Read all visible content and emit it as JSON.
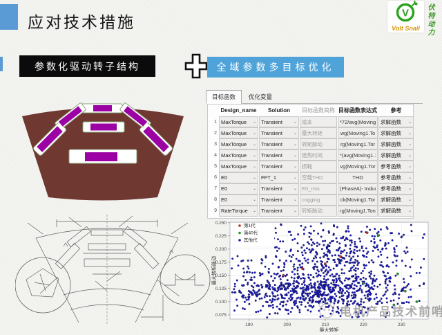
{
  "slide": {
    "title": "应对技术措施",
    "logo": {
      "brand": "Volt Snail",
      "vertical_text": "伏特动力",
      "monogram": "V"
    },
    "banners": {
      "left": "参数化驱动转子结构",
      "right": "全域参数多目标优化"
    }
  },
  "colors": {
    "accent_blue": "#5b9bd5",
    "banner_blue": "#4fa3d9",
    "banner_black": "#0b0b0b",
    "rotor_body": "#6f3830",
    "magnet": "#9b01a3",
    "slot_outline": "#8ba37d",
    "logo_green": "#2aa31c",
    "logo_gold": "#d7960c",
    "gen1_red": "#c62b1d",
    "gen40_green": "#1f9e1f",
    "other_blue": "#2020bb"
  },
  "table_panel": {
    "tabs": [
      {
        "label": "目标函数",
        "active": true
      },
      {
        "label": "优化变量",
        "active": false
      }
    ],
    "columns": [
      "",
      "Design_name",
      "Solution",
      "目标函数简称",
      "目标函数表达式",
      "参考"
    ],
    "rows": [
      {
        "n": "1",
        "design": "MaxTorque",
        "solution": "Transient",
        "abbr": "成本",
        "expr": "*72/avg(Moving",
        "ref": "求解函数"
      },
      {
        "n": "2",
        "design": "MaxTorque",
        "solution": "Transient",
        "abbr": "最大转矩",
        "expr": "wg(Moving1.To",
        "ref": "求解函数"
      },
      {
        "n": "3",
        "design": "MaxTorque",
        "solution": "Transient",
        "abbr": "转矩脉动",
        "expr": "rg(Moving1.Tor",
        "ref": "求解函数"
      },
      {
        "n": "4",
        "design": "MaxTorque",
        "solution": "Transient",
        "abbr": "绝热时间",
        "expr": "*(avg(Moving1.1",
        "ref": "求解函数"
      },
      {
        "n": "5",
        "design": "MaxTorque",
        "solution": "Transient",
        "abbr": "损耗",
        "expr": "vg(Moving1.Tor",
        "ref": "参考函数"
      },
      {
        "n": "6",
        "design": "E0",
        "solution": "FFT_1",
        "abbr": "空载THD",
        "expr": "THD",
        "ref": "参考函数"
      },
      {
        "n": "7",
        "design": "E0",
        "solution": "Transient",
        "abbr": "E0_rms",
        "expr": "(PhaseA)- Induc",
        "ref": "参考函数"
      },
      {
        "n": "8",
        "design": "E0",
        "solution": "Transient",
        "abbr": "cogging",
        "expr": "ck(Moving1.Tor",
        "ref": "求解函数"
      },
      {
        "n": "9",
        "design": "RateTorque",
        "solution": "Transient",
        "abbr": "转矩脉动",
        "expr": "rg(Moving1.Ton",
        "ref": "求解函数"
      }
    ]
  },
  "chart_data": {
    "type": "scatter",
    "xlabel": "最大转矩",
    "ylabel": "最大转矩脉动",
    "xlim": [
      185,
      237
    ],
    "ylim": [
      0.067,
      0.251
    ],
    "xticks": [
      190,
      200,
      210,
      220,
      230
    ],
    "yticks": [
      0.25,
      0.225,
      0.2,
      0.175,
      0.15,
      0.125,
      0.1,
      0.075
    ],
    "grid": "both-light",
    "legend_position": "top-left",
    "legend": [
      {
        "label": "第1代",
        "color": "#c62b1d"
      },
      {
        "label": "第40代",
        "color": "#1f9e1f"
      },
      {
        "label": "其他代",
        "color": "#2020bb"
      }
    ],
    "series_generator": {
      "name": "其他代",
      "seed": 20240042,
      "count": 1150,
      "clusters": [
        {
          "weight": 0.6,
          "x_mean": 207,
          "x_sd": 11.5,
          "y_mean": 0.117,
          "y_sd": 0.022
        },
        {
          "weight": 0.4,
          "x_mean": 214,
          "x_sd": 11.0,
          "y_mean": 0.185,
          "y_sd": 0.033
        }
      ]
    },
    "gen1_points": [
      [
        204,
        0.163
      ],
      [
        214,
        0.186
      ],
      [
        221,
        0.231
      ],
      [
        199,
        0.15
      ],
      [
        210,
        0.172
      ]
    ],
    "gen40_points": [
      [
        229,
        0.153
      ],
      [
        231,
        0.12
      ],
      [
        224,
        0.226
      ],
      [
        234,
        0.1
      ],
      [
        220,
        0.135
      ],
      [
        228,
        0.094
      ]
    ]
  },
  "watermark": {
    "text": "电机产品技术前哨"
  }
}
